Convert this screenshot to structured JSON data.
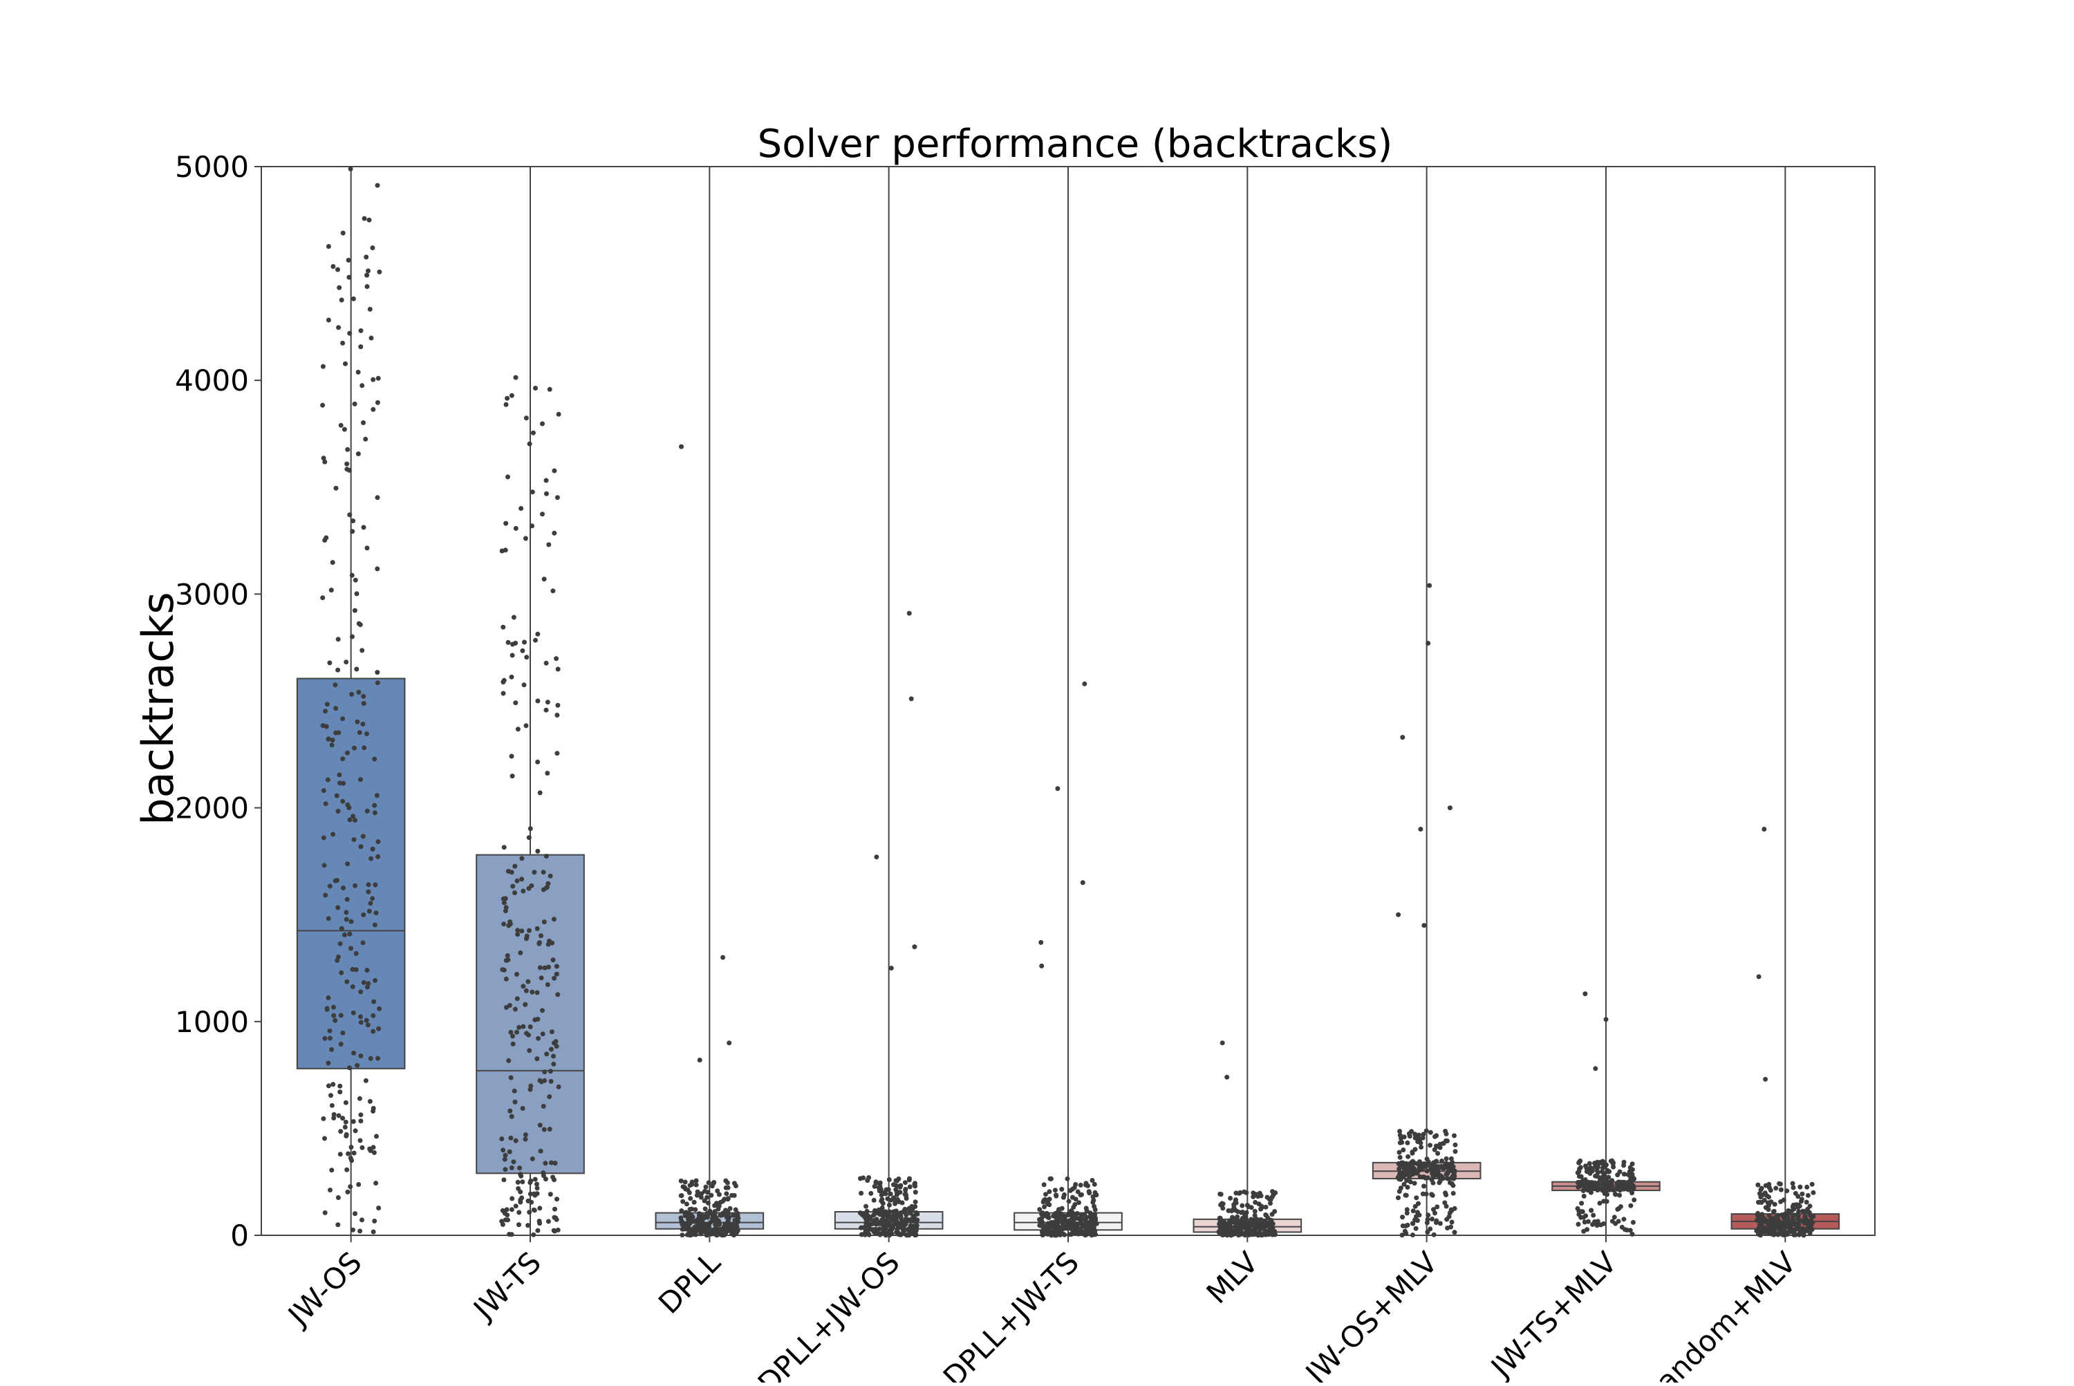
{
  "chart_data": {
    "type": "box",
    "title": "Solver performance (backtracks)",
    "xlabel": "",
    "ylabel": "backtracks",
    "ylim": [
      0,
      5000
    ],
    "yticks": [
      0,
      1000,
      2000,
      3000,
      4000,
      5000
    ],
    "grid": false,
    "legend": "none",
    "categories": [
      "JW-OS",
      "JW-TS",
      "DPLL",
      "DPLL+JW-OS",
      "DPLL+JW-TS",
      "MLV",
      "JW-OS+MLV",
      "JW-TS+MLV",
      "Random+MLV"
    ],
    "series": [
      {
        "category": "JW-OS",
        "color": "#6688b6",
        "q1": 780,
        "median": 1425,
        "q3": 2605,
        "whisker_low": 0,
        "whisker_high": 5000,
        "outliers": []
      },
      {
        "category": "JW-TS",
        "color": "#8aa0c2",
        "q1": 290,
        "median": 770,
        "q3": 1780,
        "whisker_low": 0,
        "whisker_high": 5000,
        "outliers": []
      },
      {
        "category": "DPLL",
        "color": "#b1c0d5",
        "q1": 30,
        "median": 60,
        "q3": 105,
        "whisker_low": 0,
        "whisker_high": 5000,
        "outliers": [
          3690,
          1300,
          900,
          820
        ]
      },
      {
        "category": "DPLL+JW-OS",
        "color": "#d8dee8",
        "q1": 30,
        "median": 60,
        "q3": 110,
        "whisker_low": 0,
        "whisker_high": 5000,
        "outliers": [
          2910,
          2510,
          1770,
          1350,
          1250
        ]
      },
      {
        "category": "DPLL+JW-TS",
        "color": "#f2f2f2",
        "q1": 25,
        "median": 60,
        "q3": 105,
        "whisker_low": 0,
        "whisker_high": 5000,
        "outliers": [
          2580,
          2090,
          1650,
          1370,
          1260
        ]
      },
      {
        "category": "MLV",
        "color": "#ead4d4",
        "q1": 15,
        "median": 40,
        "q3": 75,
        "whisker_low": 0,
        "whisker_high": 5000,
        "outliers": [
          900,
          740
        ]
      },
      {
        "category": "JW-OS+MLV",
        "color": "#ddb6b6",
        "q1": 265,
        "median": 300,
        "q3": 340,
        "whisker_low": 0,
        "whisker_high": 5000,
        "outliers": [
          3040,
          2770,
          2330,
          2000,
          1900,
          1500,
          1450
        ]
      },
      {
        "category": "JW-TS+MLV",
        "color": "#c88e8e",
        "q1": 210,
        "median": 230,
        "q3": 250,
        "whisker_low": 0,
        "whisker_high": 5000,
        "outliers": [
          1130,
          1010,
          780
        ]
      },
      {
        "category": "Random+MLV",
        "color": "#b45c5c",
        "q1": 30,
        "median": 65,
        "q3": 100,
        "whisker_low": 0,
        "whisker_high": 5000,
        "outliers": [
          1900,
          1210,
          730
        ]
      }
    ]
  }
}
